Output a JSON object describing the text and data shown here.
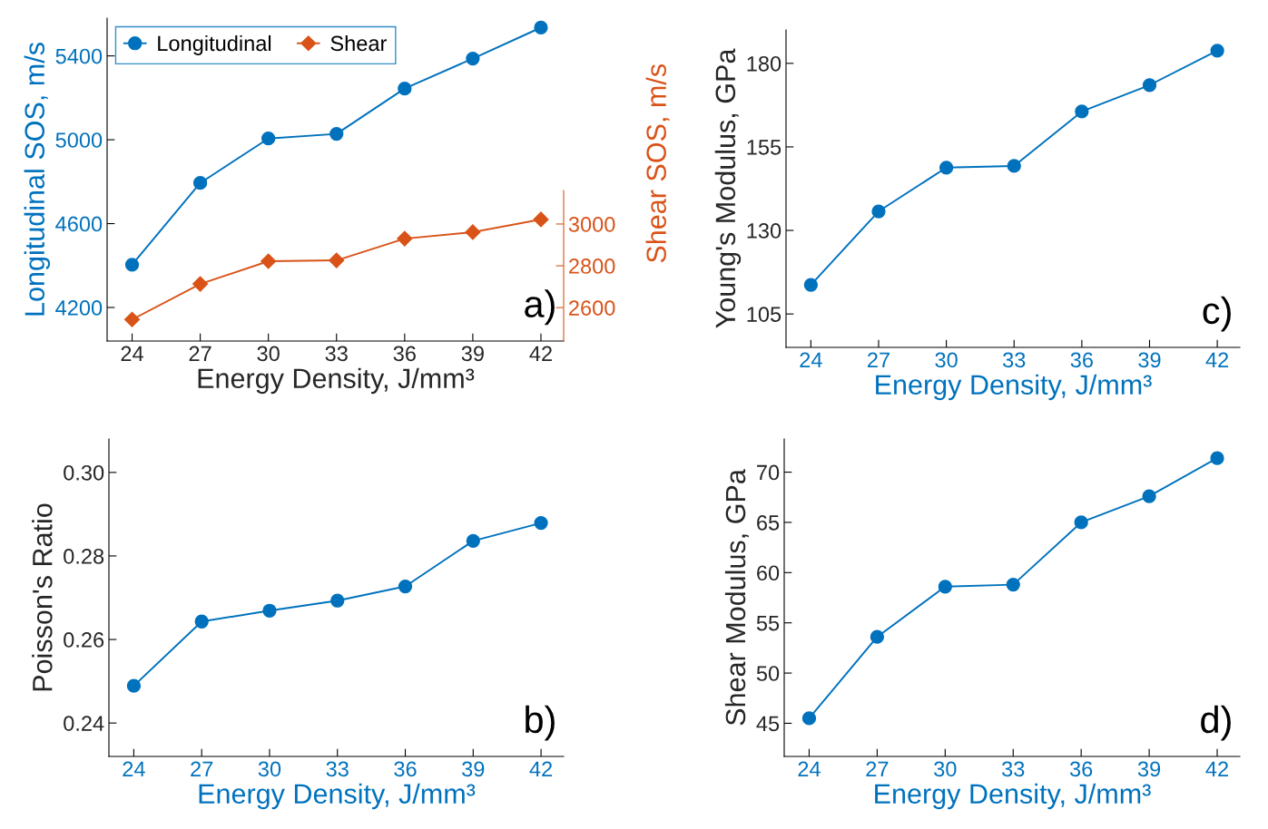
{
  "chart_data": [
    {
      "type": "line",
      "xlabel": "Energy Density, J/mm³",
      "ylabel": "Longitudinal SOS, m/s",
      "y2label": "Shear SOS, m/s",
      "x": [
        24,
        27,
        30,
        33,
        36,
        39,
        42
      ],
      "xlim": [
        22.9,
        43
      ],
      "xticks": [
        24,
        27,
        30,
        33,
        36,
        39,
        42
      ],
      "ylim": [
        4040,
        5580
      ],
      "yticks": [
        4200,
        4600,
        5000,
        5400
      ],
      "y2lim": [
        2440,
        3160
      ],
      "y2ticks": [
        2600,
        2800,
        3000
      ],
      "grid": false,
      "legend": "top left",
      "annotations": [
        "a)"
      ],
      "series": [
        {
          "name": "Longitudinal",
          "color": "#0072bd",
          "marker": "circle",
          "values": [
            4404,
            4794,
            5006,
            5028,
            5244,
            5387,
            5535
          ]
        },
        {
          "name": "Shear",
          "color": "#d95319",
          "marker": "diamond",
          "axis": "y2",
          "values": [
            2543,
            2713,
            2822,
            2826,
            2930,
            2961,
            3022
          ]
        }
      ]
    },
    {
      "type": "line",
      "xlabel": "Energy Density, J/mm³",
      "ylabel": "Young's Modulus, GPa",
      "x": [
        24,
        27,
        30,
        33,
        36,
        39,
        42
      ],
      "xlim": [
        22.9,
        43
      ],
      "xticks": [
        24,
        27,
        30,
        33,
        36,
        39,
        42
      ],
      "ylim": [
        95,
        190
      ],
      "yticks": [
        105,
        130,
        155,
        180
      ],
      "grid": false,
      "marker": "circle",
      "annotations": [
        "c)"
      ],
      "series": [
        {
          "color": "#0072bd",
          "values": [
            113.7,
            135.7,
            148.8,
            149.3,
            165.6,
            173.5,
            183.8
          ]
        }
      ]
    },
    {
      "type": "line",
      "xlabel": "Energy Density, J/mm³",
      "ylabel": "Poisson's Ratio",
      "x": [
        24,
        27,
        30,
        33,
        36,
        39,
        42
      ],
      "xlim": [
        22.9,
        43
      ],
      "xticks": [
        24,
        27,
        30,
        33,
        36,
        39,
        42
      ],
      "ylim": [
        0.232,
        0.308
      ],
      "yticks": [
        {
          "value": 0.24,
          "label": "0.24"
        },
        {
          "value": 0.26,
          "label": "0.26"
        },
        {
          "value": 0.28,
          "label": "0.28"
        },
        {
          "value": 0.3,
          "label": "0.30"
        }
      ],
      "grid": false,
      "marker": "circle",
      "annotations": [
        "b)"
      ],
      "series": [
        {
          "color": "#0072bd",
          "values": [
            0.2489,
            0.2643,
            0.2669,
            0.2693,
            0.2727,
            0.2836,
            0.2879
          ]
        }
      ]
    },
    {
      "type": "line",
      "xlabel": "Energy Density, J/mm³",
      "ylabel": "Shear Modulus, GPa",
      "x": [
        24,
        27,
        30,
        33,
        36,
        39,
        42
      ],
      "xlim": [
        22.9,
        43
      ],
      "xticks": [
        24,
        27,
        30,
        33,
        36,
        39,
        42
      ],
      "ylim": [
        41.7,
        73.3
      ],
      "yticks": [
        45,
        50,
        55,
        60,
        65,
        70
      ],
      "grid": false,
      "marker": "circle",
      "annotations": [
        "d)"
      ],
      "series": [
        {
          "color": "#0072bd",
          "values": [
            45.5,
            53.6,
            58.6,
            58.8,
            65.0,
            67.6,
            71.4
          ]
        }
      ]
    }
  ]
}
